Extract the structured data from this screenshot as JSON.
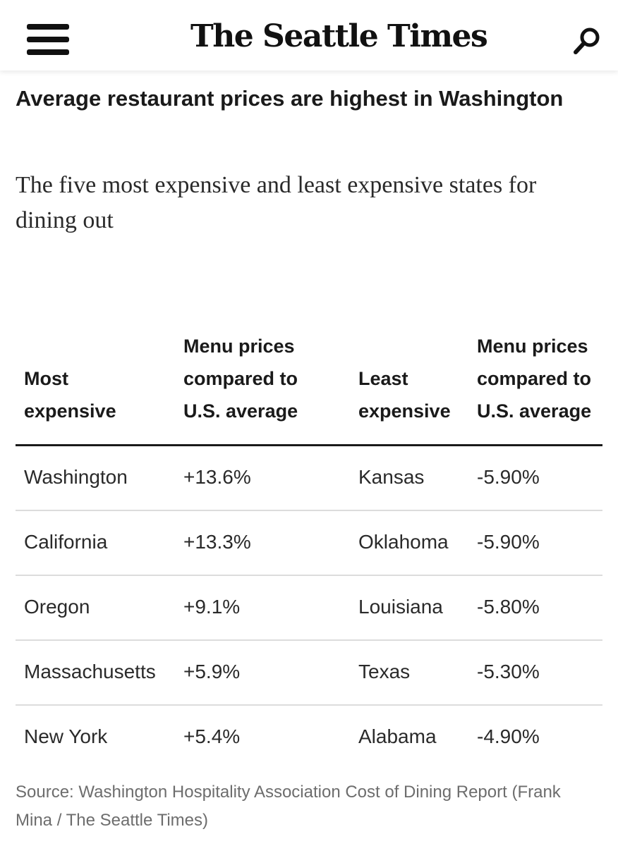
{
  "header": {
    "logo_text": "The Seattle Times",
    "menu_icon": "hamburger-menu-icon",
    "search_icon": "search-icon"
  },
  "article": {
    "title": "Average restaurant prices are highest in Washington",
    "subtitle": "The five most expensive and least expensive states for dining out"
  },
  "table": {
    "headers": [
      "Most expensive",
      "Menu prices compared to U.S. average",
      "Least expensive",
      "Menu prices compared to U.S. average"
    ],
    "rows": [
      [
        "Washington",
        "+13.6%",
        "Kansas",
        "-5.90%"
      ],
      [
        "California",
        "+13.3%",
        "Oklahoma",
        "-5.90%"
      ],
      [
        "Oregon",
        "+9.1%",
        "Louisiana",
        "-5.80%"
      ],
      [
        "Massachusetts",
        "+5.9%",
        "Texas",
        "-5.30%"
      ],
      [
        "New York",
        "+5.4%",
        "Alabama",
        "-4.90%"
      ]
    ]
  },
  "footer": {
    "source": "Source: Washington Hospitality Association Cost of Dining Report (Frank Mina / The Seattle Times)"
  }
}
